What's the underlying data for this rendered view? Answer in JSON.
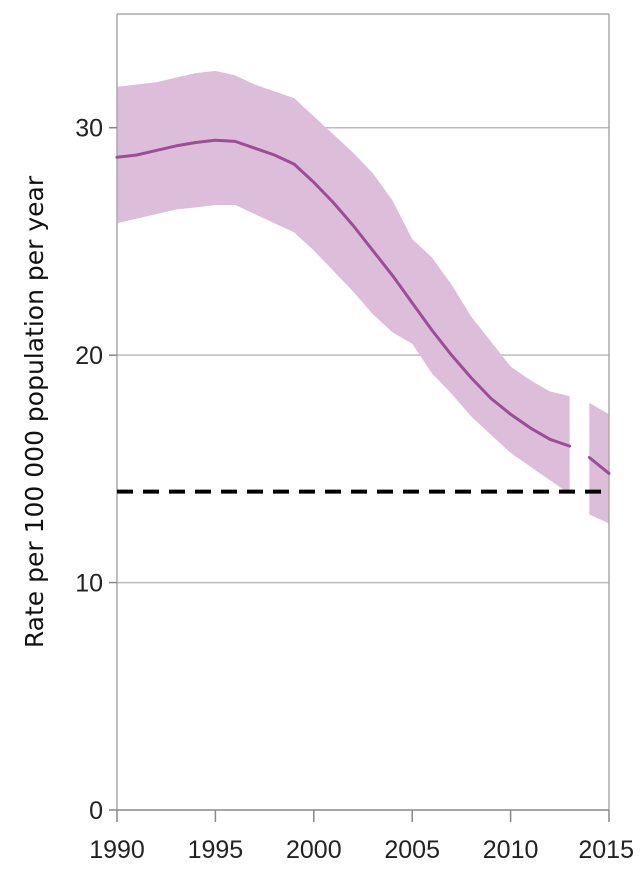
{
  "chart_data": {
    "type": "line",
    "title": "",
    "xlabel": "",
    "ylabel": "Rate per 100 000 population per year",
    "xlim": [
      1990,
      2015
    ],
    "ylim": [
      0,
      35
    ],
    "x_ticks": [
      1990,
      1995,
      2000,
      2005,
      2010,
      2015
    ],
    "y_ticks": [
      0,
      10,
      20,
      30
    ],
    "grid": "horizontal",
    "colors": {
      "line": "#9b4d95",
      "band": "#dcbedb",
      "target": "#000000",
      "grid": "#bbbbbb"
    },
    "series": [
      {
        "x": [
          1990,
          1991,
          1992,
          1993,
          1994,
          1995,
          1996,
          1997,
          1998,
          1999,
          2000,
          2001,
          2002,
          2003,
          2004,
          2005,
          2006,
          2007,
          2008,
          2009,
          2010,
          2011,
          2012,
          2013
        ],
        "values": [
          28.7,
          28.8,
          29.0,
          29.2,
          29.35,
          29.45,
          29.4,
          29.1,
          28.8,
          28.4,
          27.6,
          26.7,
          25.7,
          24.6,
          23.5,
          22.3,
          21.1,
          20.0,
          19.0,
          18.1,
          17.4,
          16.8,
          16.3,
          16.0
        ],
        "lower": [
          25.8,
          26.0,
          26.2,
          26.4,
          26.5,
          26.6,
          26.6,
          26.2,
          25.8,
          25.4,
          24.6,
          23.7,
          22.8,
          21.8,
          21.0,
          20.5,
          19.2,
          18.3,
          17.3,
          16.5,
          15.7,
          15.1,
          14.5,
          13.9
        ],
        "upper": [
          31.8,
          31.9,
          32.0,
          32.2,
          32.4,
          32.5,
          32.3,
          31.9,
          31.6,
          31.3,
          30.5,
          29.7,
          28.9,
          28.0,
          26.8,
          25.1,
          24.3,
          23.1,
          21.7,
          20.6,
          19.5,
          18.9,
          18.4,
          18.2
        ]
      },
      {
        "x": [
          2014,
          2015
        ],
        "values": [
          15.5,
          14.8
        ],
        "lower": [
          13.0,
          12.6
        ],
        "upper": [
          17.9,
          17.4
        ]
      }
    ],
    "reference_line": {
      "y": 14.0,
      "style": "dashed"
    }
  }
}
